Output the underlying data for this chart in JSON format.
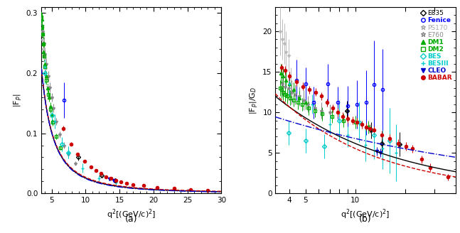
{
  "panel_a": {
    "ylabel": "|F$_{p}$|",
    "xlabel": "q$^{2}$[(GeV/c)$^{2}$]",
    "label": "(a)",
    "xlim": [
      3.5,
      30
    ],
    "ylim": [
      0,
      0.31
    ],
    "yticks": [
      0.0,
      0.1,
      0.2,
      0.3
    ],
    "xticks": [
      5,
      10,
      15,
      20,
      25,
      30
    ],
    "datasets": {
      "DM1": {
        "color": "#00aa00",
        "marker": "^",
        "filled": true,
        "x": [
          3.56,
          3.6,
          3.65,
          3.74,
          3.83,
          4.0,
          4.2,
          4.4,
          4.6,
          4.8,
          5.0
        ],
        "y": [
          0.29,
          0.275,
          0.265,
          0.25,
          0.235,
          0.215,
          0.195,
          0.175,
          0.16,
          0.145,
          0.13
        ],
        "yerr": [
          0.01,
          0.01,
          0.01,
          0.009,
          0.009,
          0.008,
          0.008,
          0.007,
          0.007,
          0.007,
          0.006
        ]
      },
      "DM2": {
        "color": "#00aa00",
        "marker": "s",
        "filled": false,
        "x": [
          3.52,
          3.6,
          3.68,
          3.78,
          3.9,
          4.05,
          4.25,
          4.5,
          4.8,
          5.2,
          5.7,
          6.3
        ],
        "y": [
          0.293,
          0.278,
          0.265,
          0.248,
          0.228,
          0.21,
          0.188,
          0.165,
          0.14,
          0.118,
          0.095,
          0.076
        ],
        "yerr": [
          0.01,
          0.009,
          0.009,
          0.008,
          0.008,
          0.007,
          0.007,
          0.006,
          0.006,
          0.005,
          0.005,
          0.004
        ]
      },
      "BES": {
        "color": "#00cccc",
        "marker": "D",
        "filled": false,
        "x": [
          4.0,
          5.0,
          6.5,
          7.5
        ],
        "y": [
          0.2,
          0.13,
          0.082,
          0.068
        ],
        "yerr": [
          0.018,
          0.015,
          0.012,
          0.01
        ]
      },
      "BESIII": {
        "color": "#00cccc",
        "marker": "+",
        "filled": false,
        "x": [
          4.0,
          5.5,
          7.5,
          9.5,
          12.0,
          14.5
        ],
        "y": [
          0.21,
          0.12,
          0.068,
          0.042,
          0.025,
          0.018
        ],
        "yerr": [
          0.015,
          0.012,
          0.01,
          0.008,
          0.005,
          0.004
        ]
      },
      "Fenice": {
        "color": "#0000ff",
        "marker": "o",
        "filled": false,
        "x": [
          6.8
        ],
        "y": [
          0.155
        ],
        "yerr": [
          0.03
        ]
      },
      "CLEO": {
        "color": "#0000cc",
        "marker": "v",
        "filled": true,
        "x": [
          13.5,
          14.2
        ],
        "y": [
          0.024,
          0.021
        ],
        "yerr": [
          0.003,
          0.003
        ]
      },
      "BABAR": {
        "color": "#cc0000",
        "marker": "o",
        "filled": true,
        "x": [
          6.76,
          7.84,
          8.84,
          9.84,
          10.76,
          11.56,
          12.25,
          13.0,
          13.69,
          14.44,
          15.21,
          16.0,
          17.0,
          18.5,
          20.5,
          23.0,
          25.5,
          28.0
        ],
        "y": [
          0.108,
          0.082,
          0.065,
          0.054,
          0.044,
          0.038,
          0.033,
          0.028,
          0.025,
          0.022,
          0.019,
          0.017,
          0.015,
          0.013,
          0.01,
          0.008,
          0.006,
          0.005
        ],
        "yerr": [
          0.004,
          0.003,
          0.003,
          0.002,
          0.002,
          0.002,
          0.002,
          0.002,
          0.001,
          0.001,
          0.001,
          0.001,
          0.001,
          0.001,
          0.001,
          0.001,
          0.001,
          0.001
        ]
      },
      "E835": {
        "color": "#000000",
        "marker": "D",
        "filled": false,
        "x": [
          8.9,
          12.4,
          14.4
        ],
        "y": [
          0.06,
          0.03,
          0.022
        ],
        "yerr": [
          0.005,
          0.003,
          0.003
        ]
      },
      "PS170": {
        "color": "#bbbbbb",
        "marker": "*",
        "filled": false,
        "x": [
          3.52,
          3.62,
          3.72,
          3.83,
          3.95,
          4.1,
          4.25,
          4.4,
          4.6,
          4.8
        ],
        "y": [
          0.29,
          0.27,
          0.255,
          0.24,
          0.225,
          0.208,
          0.192,
          0.178,
          0.16,
          0.145
        ],
        "yerr": [
          0.008,
          0.007,
          0.007,
          0.006,
          0.006,
          0.006,
          0.005,
          0.005,
          0.005,
          0.005
        ]
      },
      "E760": {
        "color": "#888888",
        "marker": "*",
        "filled": false,
        "x": [
          3.7,
          3.88,
          4.05,
          4.25,
          4.5,
          4.75,
          5.0,
          5.3,
          5.7,
          6.2,
          6.8,
          7.5,
          8.5
        ],
        "y": [
          0.27,
          0.25,
          0.232,
          0.215,
          0.195,
          0.176,
          0.16,
          0.142,
          0.12,
          0.098,
          0.08,
          0.065,
          0.05
        ],
        "yerr": [
          0.01,
          0.01,
          0.01,
          0.009,
          0.009,
          0.008,
          0.007,
          0.007,
          0.006,
          0.005,
          0.005,
          0.005,
          0.004
        ]
      }
    }
  },
  "panel_b": {
    "ylabel": "|F$_{p}$|/G$_{D}$",
    "xlabel": "q$^{2}$[(GeV/c)$^{2}$]",
    "label": "(b)",
    "xlim": [
      3.3,
      40
    ],
    "ylim": [
      0,
      23
    ],
    "yticks": [
      0,
      5,
      10,
      15,
      20
    ],
    "xtick_vals": [
      4,
      5,
      6,
      7,
      8,
      9,
      10,
      20,
      30
    ],
    "xtick_labels": [
      "4",
      "5",
      "",
      "",
      "",
      "",
      "10",
      "",
      ""
    ],
    "datasets": {
      "E835": {
        "color": "#000000",
        "marker": "D",
        "filled": false,
        "x": [
          8.9,
          12.4,
          14.4,
          18.4
        ],
        "y": [
          10.2,
          7.8,
          6.2,
          6.1
        ],
        "yerr": [
          1.2,
          1.0,
          1.0,
          1.5
        ],
        "xerr": [
          0.3,
          0.4,
          0.4,
          0.5
        ]
      },
      "Fenice": {
        "color": "#0000ff",
        "marker": "o",
        "filled": false,
        "x": [
          4.4,
          5.0,
          5.6,
          6.8,
          7.8,
          9.0,
          10.2,
          11.6,
          13.0,
          14.5
        ],
        "y": [
          14.0,
          13.5,
          11.2,
          13.5,
          11.2,
          10.8,
          11.0,
          11.2,
          13.4,
          12.8
        ],
        "yerr": [
          2.5,
          2.0,
          2.0,
          2.5,
          2.0,
          2.5,
          3.0,
          4.0,
          5.5,
          5.0
        ]
      },
      "PS170": {
        "color": "#bbbbbb",
        "marker": "*",
        "filled": false,
        "x": [
          3.52,
          3.62,
          3.72,
          3.83,
          3.95,
          4.1
        ],
        "y": [
          20.0,
          19.0,
          18.5,
          17.5,
          17.0,
          13.5
        ],
        "yerr": [
          3.0,
          2.5,
          2.5,
          2.5,
          2.0,
          2.0
        ]
      },
      "E760": {
        "color": "#888888",
        "marker": "*",
        "filled": false,
        "x": [
          3.62,
          3.78,
          3.95,
          4.12,
          4.35,
          4.6,
          4.88,
          5.18,
          5.7,
          6.25,
          7.0,
          7.8
        ],
        "y": [
          13.5,
          13.2,
          13.0,
          12.5,
          12.2,
          12.0,
          11.5,
          11.0,
          10.5,
          10.2,
          10.0,
          10.0
        ],
        "yerr": [
          1.5,
          1.5,
          1.5,
          1.5,
          1.2,
          1.2,
          1.2,
          1.0,
          1.0,
          1.0,
          1.0,
          1.0
        ]
      },
      "DM1": {
        "color": "#00aa00",
        "marker": "^",
        "filled": true,
        "x": [
          3.56,
          3.65,
          3.8,
          4.0,
          4.25,
          4.6,
          5.0
        ],
        "y": [
          14.8,
          14.5,
          14.0,
          13.5,
          12.8,
          11.8,
          11.2
        ],
        "yerr": [
          1.2,
          1.0,
          1.0,
          1.0,
          0.9,
          0.8,
          0.8
        ]
      },
      "DM2": {
        "color": "#00aa00",
        "marker": "s",
        "filled": false,
        "x": [
          3.52,
          3.6,
          3.68,
          3.78,
          3.9,
          4.05,
          4.25,
          4.5,
          4.8,
          5.2,
          5.7,
          6.3,
          7.2,
          8.5,
          10.0,
          12.0
        ],
        "y": [
          13.0,
          12.8,
          12.5,
          12.2,
          12.0,
          11.8,
          11.5,
          11.2,
          11.0,
          10.5,
          10.2,
          9.8,
          9.5,
          9.0,
          8.8,
          8.2
        ],
        "yerr": [
          1.0,
          1.0,
          1.0,
          0.9,
          0.9,
          0.9,
          0.8,
          0.8,
          0.8,
          0.8,
          0.8,
          0.8,
          0.8,
          0.8,
          0.8,
          0.8
        ]
      },
      "BES": {
        "color": "#00cccc",
        "marker": "D",
        "filled": false,
        "x": [
          3.95,
          5.0,
          6.5,
          8.0,
          10.5,
          13.0,
          16.0
        ],
        "y": [
          7.5,
          6.5,
          5.8,
          9.0,
          8.8,
          7.2,
          6.5
        ],
        "yerr": [
          1.5,
          1.5,
          1.5,
          2.5,
          2.5,
          3.0,
          4.0
        ]
      },
      "BESIII": {
        "color": "#00cccc",
        "marker": "+",
        "filled": false,
        "x": [
          4.0,
          5.5,
          7.0,
          9.0,
          11.5,
          14.5,
          17.5
        ],
        "y": [
          13.5,
          11.0,
          8.5,
          7.2,
          6.0,
          5.5,
          5.0
        ],
        "yerr": [
          1.5,
          1.2,
          1.2,
          1.5,
          2.0,
          2.5,
          3.5
        ]
      },
      "CLEO": {
        "color": "#0000cc",
        "marker": "v",
        "filled": true,
        "x": [
          13.5,
          14.2
        ],
        "y": [
          5.2,
          5.0
        ],
        "yerr": [
          0.5,
          0.5
        ]
      },
      "BABAR": {
        "color": "#cc0000",
        "marker": "o",
        "filled": true,
        "x": [
          3.6,
          3.76,
          4.0,
          4.4,
          4.84,
          5.29,
          5.76,
          6.25,
          6.76,
          7.29,
          7.84,
          8.41,
          9.0,
          9.61,
          10.24,
          10.89,
          11.56,
          12.25,
          13.0,
          14.44,
          16.0,
          18.0,
          20.25,
          22.09,
          25.0,
          28.09,
          36.0
        ],
        "y": [
          15.5,
          15.2,
          14.5,
          13.8,
          13.2,
          12.8,
          12.5,
          12.0,
          11.2,
          10.5,
          10.0,
          9.5,
          9.2,
          9.0,
          8.8,
          8.5,
          8.2,
          8.0,
          7.8,
          7.2,
          6.8,
          6.2,
          5.8,
          5.5,
          4.2,
          3.2,
          2.0
        ],
        "yerr": [
          0.5,
          0.5,
          0.5,
          0.5,
          0.5,
          0.5,
          0.5,
          0.5,
          0.5,
          0.5,
          0.5,
          0.5,
          0.5,
          0.5,
          0.5,
          0.5,
          0.5,
          0.5,
          0.5,
          0.5,
          0.5,
          0.5,
          0.5,
          0.5,
          0.5,
          0.5,
          0.4
        ]
      }
    }
  },
  "legend_b": {
    "entries": [
      "E835",
      "Fenice",
      "PS170",
      "E760",
      "DM1",
      "DM2",
      "BES",
      "BESIII",
      "CLEO",
      "BABAR"
    ],
    "colors": [
      "#000000",
      "#0000ff",
      "#aaaaaa",
      "#888888",
      "#00aa00",
      "#00aa00",
      "#00cccc",
      "#00cccc",
      "#0000cc",
      "#cc0000"
    ],
    "markers": [
      "D",
      "o",
      "*",
      "*",
      "^",
      "s",
      "D",
      "+",
      "v",
      "o"
    ],
    "filled": [
      false,
      false,
      false,
      false,
      true,
      false,
      false,
      false,
      true,
      true
    ],
    "bold": [
      false,
      true,
      false,
      false,
      true,
      true,
      true,
      true,
      true,
      true
    ]
  }
}
